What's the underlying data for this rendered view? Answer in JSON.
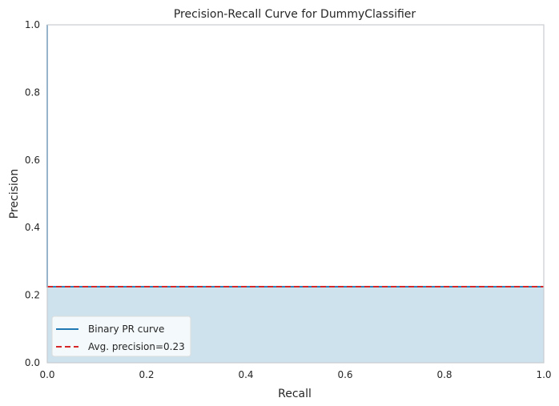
{
  "chart_data": {
    "type": "area",
    "title": "Precision-Recall Curve for DummyClassifier",
    "xlabel": "Recall",
    "ylabel": "Precision",
    "xlim": [
      0,
      1
    ],
    "ylim": [
      0,
      1
    ],
    "xticks": [
      "0.0",
      "0.2",
      "0.4",
      "0.6",
      "0.8",
      "1.0"
    ],
    "yticks": [
      "0.0",
      "0.2",
      "0.4",
      "0.6",
      "0.8",
      "1.0"
    ],
    "grid": false,
    "legend_position": "lower-left",
    "series": [
      {
        "name": "Binary PR curve",
        "style": "solid",
        "color": "#1f77b4",
        "fill_color": "#cde2ec",
        "x": [
          0.0,
          0.0,
          1.0
        ],
        "y": [
          1.0,
          0.225,
          0.225
        ]
      },
      {
        "name": "Avg. precision=0.23",
        "style": "dashed",
        "color": "#d62728",
        "x": [
          0.0,
          1.0
        ],
        "y": [
          0.225,
          0.225
        ]
      }
    ]
  }
}
